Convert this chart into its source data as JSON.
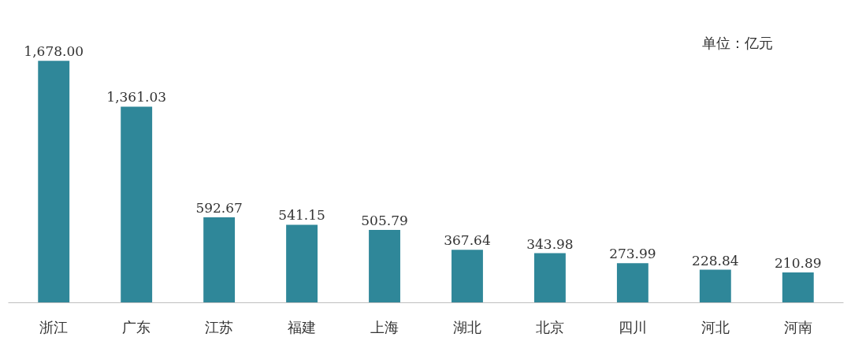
{
  "chart_data": {
    "type": "bar",
    "categories": [
      "浙江",
      "广东",
      "江苏",
      "福建",
      "上海",
      "湖北",
      "北京",
      "四川",
      "河北",
      "河南"
    ],
    "values": [
      1678.0,
      1361.03,
      592.67,
      541.15,
      505.79,
      367.64,
      343.98,
      273.99,
      228.84,
      210.89
    ],
    "value_labels": [
      "1,678.00",
      "1,361.03",
      "592.67",
      "541.15",
      "505.79",
      "367.64",
      "343.98",
      "273.99",
      "228.84",
      "210.89"
    ],
    "color": "#2f8799",
    "annotations": [
      "单位：亿元"
    ],
    "grid": false
  }
}
